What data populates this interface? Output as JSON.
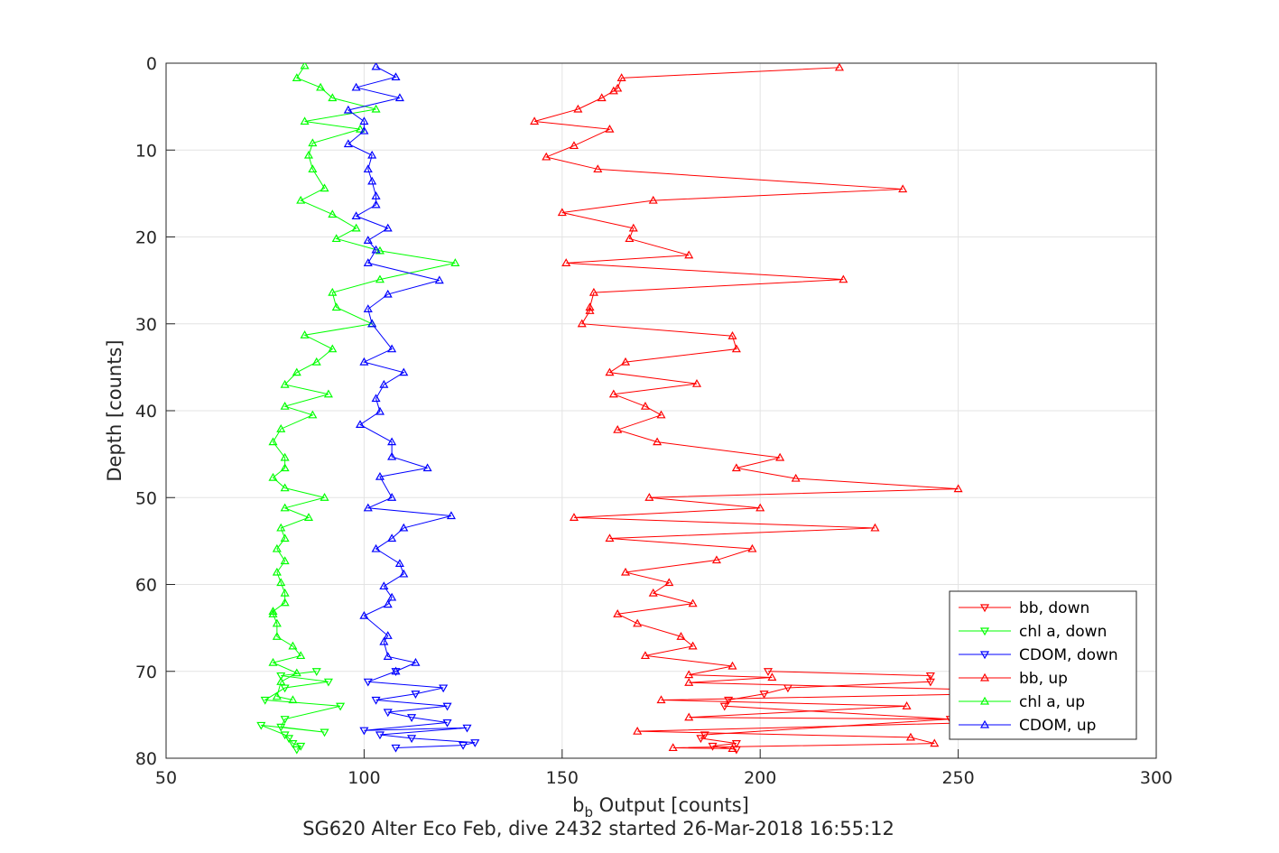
{
  "chart_data": {
    "type": "line",
    "title": "",
    "xlabel_main": "b",
    "xlabel_sub": "b",
    "xlabel_rest": " Output [counts]",
    "ylabel": "Depth [counts]",
    "caption": "SG620 Alter Eco Feb, dive 2432 started 26-Mar-2018 16:55:12",
    "xlim": [
      50,
      300
    ],
    "ylim": [
      0,
      80
    ],
    "y_reversed": true,
    "grid": true,
    "xticks": [
      50,
      100,
      150,
      200,
      250,
      300
    ],
    "yticks": [
      0,
      10,
      20,
      30,
      40,
      50,
      60,
      70,
      80
    ],
    "legend_position": "lower-right",
    "series": [
      {
        "name": "bb, down",
        "color": "#ff0000",
        "marker": "triangle-down",
        "x": [
          202,
          243,
          243,
          207,
          201,
          192,
          191,
          248,
          186,
          185,
          194,
          188,
          194
        ],
        "y": [
          70.0,
          70.5,
          71.2,
          71.9,
          72.6,
          73.3,
          74.0,
          75.5,
          77.3,
          77.7,
          78.3,
          78.6,
          79.0
        ]
      },
      {
        "name": "chl a, down",
        "color": "#00ff00",
        "marker": "triangle-down",
        "x": [
          88,
          79,
          91,
          80,
          75,
          94,
          80,
          79,
          90,
          74,
          80,
          81,
          82,
          84,
          83
        ],
        "y": [
          70.0,
          70.5,
          71.2,
          71.9,
          73.3,
          74.0,
          75.5,
          76.4,
          77.0,
          76.2,
          77.3,
          77.7,
          78.3,
          78.6,
          79.0
        ]
      },
      {
        "name": "CDOM, down",
        "color": "#0000ff",
        "marker": "triangle-down",
        "x": [
          108,
          101,
          120,
          113,
          103,
          121,
          106,
          112,
          121,
          100,
          126,
          104,
          112,
          128,
          125,
          108
        ],
        "y": [
          70.0,
          71.2,
          71.9,
          72.6,
          73.3,
          74.0,
          74.7,
          75.3,
          75.9,
          76.8,
          76.5,
          77.3,
          77.7,
          78.2,
          78.5,
          78.8
        ]
      },
      {
        "name": "bb, up",
        "color": "#ff0000",
        "marker": "triangle-up",
        "x": [
          220,
          165,
          164,
          163,
          160,
          154,
          143,
          162,
          153,
          146,
          159,
          236,
          173,
          150,
          168,
          167,
          182,
          151,
          221,
          158,
          157,
          157,
          155,
          193,
          194,
          166,
          162,
          184,
          163,
          171,
          175,
          164,
          174,
          205,
          194,
          209,
          250,
          172,
          200,
          153,
          229,
          162,
          198,
          189,
          166,
          177,
          173,
          183,
          164,
          169,
          180,
          183,
          171,
          193,
          182,
          203,
          182,
          280,
          175,
          237,
          182,
          280,
          169,
          238,
          244,
          178,
          193
        ],
        "y": [
          0.5,
          1.7,
          2.9,
          3.2,
          4.0,
          5.3,
          6.7,
          7.6,
          9.5,
          10.8,
          12.2,
          14.5,
          15.8,
          17.2,
          19.0,
          20.2,
          22.1,
          23.0,
          24.9,
          26.4,
          28.1,
          28.5,
          30.0,
          31.4,
          32.9,
          34.4,
          35.6,
          36.9,
          38.1,
          39.5,
          40.5,
          42.2,
          43.6,
          45.4,
          46.6,
          47.8,
          49.0,
          50.0,
          51.2,
          52.3,
          53.5,
          54.7,
          55.9,
          57.2,
          58.6,
          59.8,
          61.0,
          62.2,
          63.4,
          64.5,
          66.0,
          67.1,
          68.2,
          69.4,
          70.4,
          70.7,
          71.3,
          72.4,
          73.3,
          74.0,
          75.3,
          75.6,
          76.9,
          77.6,
          78.3,
          78.8,
          78.9
        ]
      },
      {
        "name": "chl a, up",
        "color": "#00ff00",
        "marker": "triangle-up",
        "x": [
          85,
          83,
          89,
          92,
          103,
          85,
          99,
          87,
          86,
          87,
          90,
          84,
          92,
          98,
          93,
          104,
          123,
          104,
          92,
          93,
          102,
          85,
          92,
          88,
          83,
          80,
          91,
          80,
          87,
          79,
          77,
          80,
          80,
          77,
          80,
          90,
          80,
          86,
          79,
          80,
          78,
          80,
          78,
          79,
          80,
          80,
          77,
          77,
          78,
          78,
          82,
          84,
          77,
          83,
          79,
          78,
          82
        ],
        "y": [
          0.3,
          1.7,
          2.8,
          4.0,
          5.3,
          6.7,
          7.6,
          9.2,
          10.6,
          12.2,
          14.4,
          15.8,
          17.4,
          19.0,
          20.2,
          21.6,
          23.0,
          24.9,
          26.4,
          28.1,
          30.0,
          31.3,
          32.9,
          34.4,
          35.6,
          37.0,
          38.1,
          39.5,
          40.5,
          42.1,
          43.6,
          45.4,
          46.6,
          47.7,
          48.9,
          50.0,
          51.2,
          52.3,
          53.5,
          54.7,
          55.9,
          57.3,
          58.6,
          59.8,
          61.0,
          62.1,
          63.1,
          63.4,
          64.5,
          66.0,
          67.1,
          68.2,
          69.0,
          70.2,
          71.2,
          72.9,
          73.3
        ]
      },
      {
        "name": "CDOM, up",
        "color": "#0000ff",
        "marker": "triangle-up",
        "x": [
          103,
          108,
          98,
          109,
          96,
          100,
          100,
          96,
          102,
          101,
          102,
          103,
          103,
          98,
          106,
          101,
          103,
          101,
          119,
          106,
          101,
          102,
          107,
          100,
          110,
          105,
          103,
          104,
          99,
          107,
          107,
          116,
          104,
          107,
          101,
          122,
          110,
          107,
          103,
          109,
          110,
          105,
          107,
          106,
          100,
          106,
          105,
          106,
          113,
          108
        ],
        "y": [
          0.4,
          1.6,
          2.8,
          4.0,
          5.4,
          6.7,
          7.8,
          9.3,
          10.6,
          12.2,
          13.6,
          15.3,
          16.3,
          17.6,
          19.0,
          20.4,
          21.5,
          23.0,
          25.0,
          26.6,
          28.3,
          30.0,
          32.9,
          34.4,
          35.6,
          37.0,
          38.6,
          40.1,
          41.6,
          43.6,
          45.3,
          46.6,
          47.6,
          50.0,
          51.2,
          52.1,
          53.5,
          54.7,
          55.9,
          57.6,
          58.8,
          60.2,
          61.5,
          62.3,
          63.6,
          65.9,
          66.6,
          68.3,
          69.0,
          70.0
        ]
      }
    ]
  }
}
